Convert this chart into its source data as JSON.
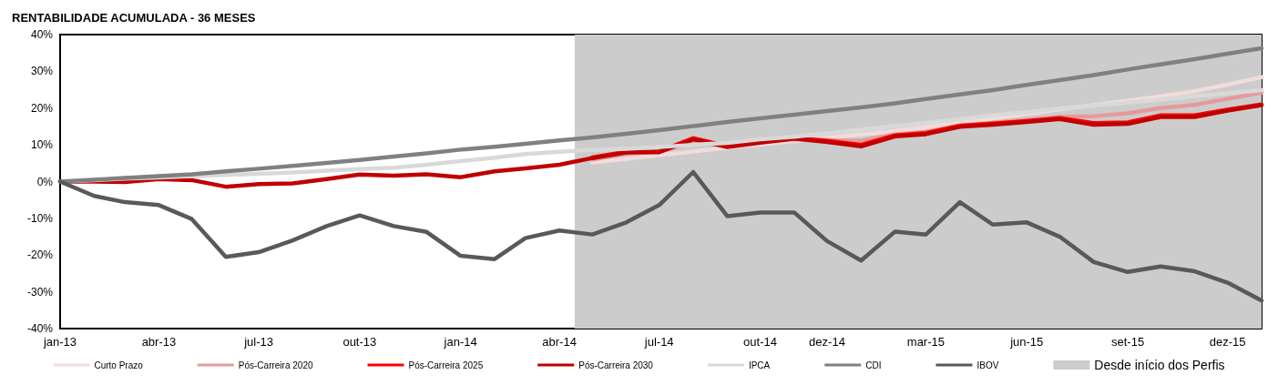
{
  "chart_data": {
    "type": "line",
    "title": "RENTABILIDADE ACUMULADA - 36 MESES",
    "x": [
      "2013-01",
      "2013-02",
      "2013-03",
      "2013-04",
      "2013-05",
      "2013-06",
      "2013-07",
      "2013-08",
      "2013-09",
      "2013-10",
      "2013-11",
      "2013-12",
      "2014-01",
      "2014-02",
      "2014-03",
      "2014-04",
      "2014-05",
      "2014-06",
      "2014-07",
      "2014-08",
      "2014-09",
      "2014-10",
      "2014-11",
      "2014-12",
      "2015-01",
      "2015-02",
      "2015-03",
      "2015-04",
      "2015-05",
      "2015-06",
      "2015-07",
      "2015-08",
      "2015-09",
      "2015-10",
      "2015-11",
      "2015-12",
      "2016-01"
    ],
    "series": [
      {
        "name": "Curto Prazo",
        "color": "#f2dcdb",
        "values": [
          null,
          null,
          null,
          null,
          null,
          null,
          null,
          null,
          null,
          null,
          null,
          null,
          null,
          null,
          null,
          null,
          5.2,
          6.2,
          7.2,
          8.2,
          9.2,
          10.1,
          11.0,
          11.9,
          12.8,
          13.8,
          14.8,
          16.0,
          17.2,
          18.4,
          19.6,
          20.8,
          22.0,
          23.2,
          24.6,
          26.4,
          28.4
        ]
      },
      {
        "name": "Pós-Carreira 2020",
        "color": "#e6999a",
        "values": [
          null,
          null,
          null,
          null,
          null,
          null,
          null,
          null,
          null,
          null,
          null,
          null,
          null,
          null,
          null,
          null,
          6.0,
          7.6,
          8.2,
          10.6,
          9.8,
          10.7,
          11.5,
          11.3,
          11.1,
          12.8,
          13.5,
          15.3,
          16.0,
          16.8,
          17.6,
          17.8,
          18.6,
          20.0,
          20.9,
          22.5,
          24.2
        ]
      },
      {
        "name": "Pós-Carreira 2025",
        "color": "#ff0000",
        "values": [
          null,
          null,
          null,
          null,
          null,
          null,
          null,
          null,
          null,
          null,
          null,
          null,
          null,
          null,
          null,
          null,
          6.6,
          8.1,
          8.2,
          11.8,
          9.7,
          10.9,
          11.9,
          11.1,
          10.0,
          12.6,
          13.2,
          15.2,
          15.8,
          16.5,
          17.3,
          15.9,
          16.1,
          18.0,
          18.0,
          19.6,
          21.0
        ]
      },
      {
        "name": "Pós-Carreira 2030",
        "color": "#c00000",
        "values": [
          0,
          0,
          -0.1,
          0.7,
          0.4,
          -1.4,
          -0.7,
          -0.5,
          0.7,
          1.9,
          1.6,
          2.0,
          1.2,
          2.8,
          3.6,
          4.6,
          6.4,
          7.9,
          8.0,
          11.5,
          9.4,
          10.6,
          11.7,
          10.8,
          9.6,
          12.3,
          12.9,
          14.9,
          15.5,
          16.2,
          17.0,
          15.5,
          15.7,
          17.6,
          17.6,
          19.3,
          20.8
        ]
      },
      {
        "name": "IPCA",
        "color": "#d9d9d9",
        "values": [
          0,
          0.4,
          0.8,
          1.1,
          1.5,
          1.8,
          2.1,
          2.5,
          3.0,
          3.4,
          3.8,
          4.6,
          5.6,
          6.5,
          7.5,
          8.1,
          8.6,
          8.9,
          9.4,
          10.0,
          10.5,
          11.5,
          12.2,
          13.1,
          14.1,
          15.1,
          16.0,
          17.0,
          18.0,
          18.9,
          19.9,
          20.7,
          21.5,
          22.3,
          23.2,
          24.0,
          24.9
        ]
      },
      {
        "name": "CDI",
        "color": "#808080",
        "values": [
          0,
          0.5,
          1.0,
          1.5,
          2.0,
          2.8,
          3.5,
          4.3,
          5.1,
          5.9,
          6.8,
          7.7,
          8.7,
          9.5,
          10.3,
          11.2,
          12.0,
          13.0,
          14.0,
          15.1,
          16.2,
          17.2,
          18.2,
          19.2,
          20.2,
          21.3,
          22.5,
          23.7,
          24.9,
          26.3,
          27.6,
          29.0,
          30.5,
          31.9,
          33.3,
          34.8,
          36.3
        ]
      },
      {
        "name": "IBOV",
        "color": "#595959",
        "values": [
          0,
          -3.9,
          -5.6,
          -6.4,
          -10.2,
          -20.5,
          -19.2,
          -16.0,
          -12.1,
          -9.2,
          -12.1,
          -13.7,
          -20.2,
          -21.1,
          -15.4,
          -13.3,
          -14.4,
          -11.1,
          -6.4,
          2.6,
          -9.4,
          -8.4,
          -8.4,
          -16.2,
          -21.5,
          -13.6,
          -14.4,
          -5.6,
          -11.7,
          -11.1,
          -15.0,
          -21.9,
          -24.6,
          -23.1,
          -24.4,
          -27.5,
          -32.4
        ]
      }
    ],
    "xlim": [
      "2013-01",
      "2016-01"
    ],
    "xticks": [
      {
        "value": "2013-01",
        "label": "jan-13"
      },
      {
        "value": "2013-04",
        "label": "abr-13"
      },
      {
        "value": "2013-07",
        "label": "jul-13"
      },
      {
        "value": "2013-10",
        "label": "out-13"
      },
      {
        "value": "2014-01",
        "label": "jan-14"
      },
      {
        "value": "2014-04",
        "label": "abr-14"
      },
      {
        "value": "2014-07",
        "label": "jul-14"
      },
      {
        "value": "2014-10",
        "label": "out-14"
      },
      {
        "value": "2014-12",
        "label": "dez-14"
      },
      {
        "value": "2015-03",
        "label": "mar-15"
      },
      {
        "value": "2015-06",
        "label": "jun-15"
      },
      {
        "value": "2015-09",
        "label": "set-15"
      },
      {
        "value": "2015-12",
        "label": "dez-15"
      }
    ],
    "ylim": [
      -40,
      40
    ],
    "yticks": [
      {
        "value": -40,
        "label": "-40%"
      },
      {
        "value": -30,
        "label": "-30%"
      },
      {
        "value": -20,
        "label": "-20%"
      },
      {
        "value": -10,
        "label": "-10%"
      },
      {
        "value": 0,
        "label": "0%"
      },
      {
        "value": 10,
        "label": "10%"
      },
      {
        "value": 20,
        "label": "20%"
      },
      {
        "value": 30,
        "label": "30%"
      },
      {
        "value": 40,
        "label": "40%"
      }
    ],
    "bands": [
      {
        "axis": "x",
        "from": "2014-04-15",
        "to": "2016-01",
        "label": "Desde início dos Perfis",
        "color": "#cccccc"
      }
    ],
    "legend": "bottom",
    "marker": "none",
    "line_style": "solid"
  }
}
